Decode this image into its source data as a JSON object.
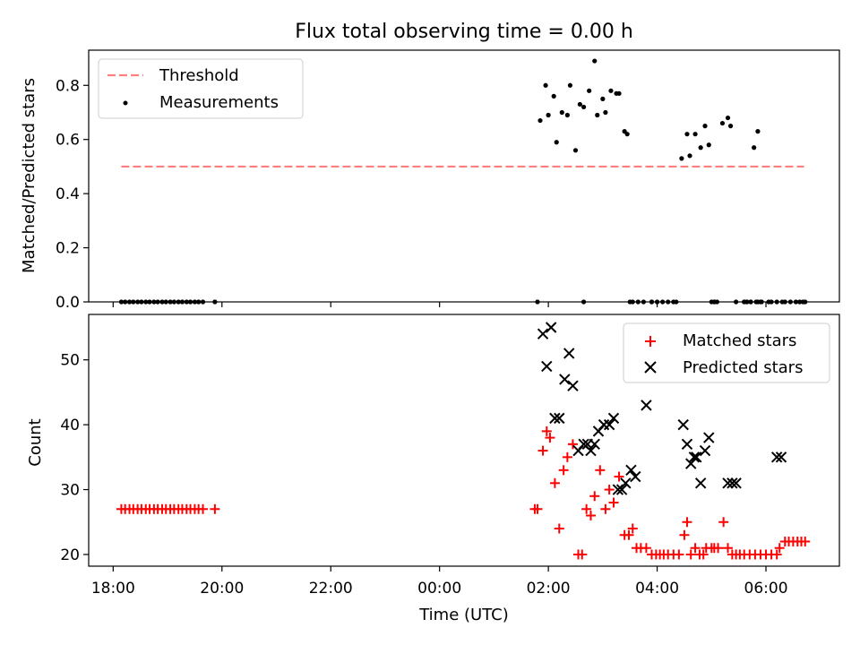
{
  "chart_data": [
    {
      "type": "scatter",
      "title": "Flux total observing time = 0.00 h",
      "xlabel": "",
      "ylabel": "Matched/Predicted stars",
      "ylim": [
        0,
        0.93
      ],
      "yticks": [
        0.0,
        0.2,
        0.4,
        0.6,
        0.8
      ],
      "ytick_labels": [
        "0.0",
        "0.2",
        "0.4",
        "0.6",
        "0.8"
      ],
      "xlim_hours": [
        17.55,
        31.35
      ],
      "legend": {
        "placement": "top-left",
        "entries": [
          "Threshold",
          "Measurements"
        ]
      },
      "threshold": {
        "name": "Threshold",
        "value": 0.5,
        "x_start": 18.15,
        "x_end": 30.7,
        "color": "#ff7f7f"
      },
      "measurements": {
        "name": "Measurements",
        "color": "#000000",
        "x": [
          18.15,
          18.22,
          18.3,
          18.37,
          18.45,
          18.52,
          18.6,
          18.67,
          18.75,
          18.82,
          18.9,
          18.97,
          19.05,
          19.12,
          19.2,
          19.27,
          19.35,
          19.42,
          19.5,
          19.57,
          19.65,
          19.87,
          25.8,
          25.85,
          25.95,
          26.0,
          26.1,
          26.15,
          26.25,
          26.35,
          26.4,
          26.5,
          26.58,
          26.65,
          26.75,
          26.85,
          26.9,
          27.0,
          27.05,
          27.15,
          27.25,
          27.3,
          27.4,
          27.45,
          27.55,
          27.65,
          27.75,
          27.9,
          28.45,
          28.55,
          28.6,
          28.7,
          28.8,
          28.88,
          28.95,
          29.05,
          29.2,
          29.3,
          29.35,
          29.45,
          29.6,
          29.65,
          29.72,
          29.78,
          29.85,
          29.92,
          30.05,
          30.1,
          30.2,
          30.3,
          30.35,
          30.45,
          30.55,
          30.62,
          30.68,
          30.72
        ],
        "y": [
          0,
          0,
          0,
          0,
          0,
          0,
          0,
          0,
          0,
          0,
          0,
          0,
          0,
          0,
          0,
          0,
          0,
          0,
          0,
          0,
          0,
          0,
          0,
          0.67,
          0.8,
          0.69,
          0.76,
          0.59,
          0.7,
          0.69,
          0.8,
          0.56,
          0.73,
          0.72,
          0.78,
          0.89,
          0.69,
          0.75,
          0.7,
          0.78,
          0.77,
          0.77,
          0.63,
          0.62,
          0,
          0,
          0,
          0,
          0.53,
          0.62,
          0.54,
          0.62,
          0.57,
          0.65,
          0.58,
          0,
          0.66,
          0.68,
          0.65,
          0,
          0,
          0,
          0,
          0.57,
          0.63,
          0,
          0,
          0,
          0,
          0,
          0,
          0,
          0,
          0,
          0,
          0
        ],
        "zero_extra_x": [
          26.65,
          27.5,
          27.9,
          28.0,
          28.1,
          28.2,
          28.3,
          28.35,
          29.0,
          29.05,
          29.1,
          29.6,
          29.65,
          29.72,
          29.82,
          29.85,
          29.9
        ]
      }
    },
    {
      "type": "scatter",
      "title": "",
      "xlabel": "Time (UTC)",
      "ylabel": "Count",
      "ylim": [
        18.2,
        57.0
      ],
      "yticks": [
        20,
        30,
        40,
        50
      ],
      "ytick_labels": [
        "20",
        "30",
        "40",
        "50"
      ],
      "xlim_hours": [
        17.55,
        31.35
      ],
      "xticks_hours": [
        18,
        20,
        22,
        24,
        26,
        28,
        30
      ],
      "xtick_labels": [
        "18:00",
        "20:00",
        "22:00",
        "00:00",
        "02:00",
        "04:00",
        "06:00"
      ],
      "legend": {
        "placement": "top-right",
        "entries": [
          "Matched stars",
          "Predicted stars"
        ]
      },
      "series": [
        {
          "name": "Matched stars",
          "marker": "plus",
          "color": "#ff0000",
          "x": [
            18.15,
            18.22,
            18.3,
            18.37,
            18.45,
            18.52,
            18.6,
            18.67,
            18.75,
            18.82,
            18.9,
            18.97,
            19.05,
            19.12,
            19.2,
            19.27,
            19.35,
            19.42,
            19.5,
            19.57,
            19.65,
            19.87,
            25.75,
            25.8,
            25.9,
            25.97,
            26.03,
            26.12,
            26.2,
            26.28,
            26.35,
            26.45,
            26.55,
            26.62,
            26.7,
            26.78,
            26.85,
            26.95,
            27.05,
            27.12,
            27.2,
            27.3,
            27.4,
            27.48,
            27.55,
            27.62,
            27.7,
            27.8,
            27.9,
            27.98,
            28.05,
            28.12,
            28.2,
            28.3,
            28.4,
            28.5,
            28.55,
            28.62,
            28.7,
            28.78,
            28.85,
            28.9,
            29.0,
            29.05,
            29.12,
            29.22,
            29.3,
            29.38,
            29.45,
            29.52,
            29.6,
            29.7,
            29.8,
            29.9,
            30.0,
            30.1,
            30.2,
            30.25,
            30.35,
            30.42,
            30.5,
            30.58,
            30.65,
            30.72
          ],
          "y": [
            27,
            27,
            27,
            27,
            27,
            27,
            27,
            27,
            27,
            27,
            27,
            27,
            27,
            27,
            27,
            27,
            27,
            27,
            27,
            27,
            27,
            27,
            27,
            27,
            36,
            39,
            38,
            31,
            24,
            33,
            35,
            37,
            20,
            20,
            27,
            26,
            29,
            33,
            27,
            30,
            28,
            32,
            23,
            23,
            24,
            21,
            21,
            21,
            20,
            20,
            20,
            20,
            20,
            20,
            20,
            23,
            25,
            20,
            21,
            20,
            20,
            21,
            21,
            21,
            21,
            25,
            21,
            20,
            20,
            20,
            20,
            20,
            20,
            20,
            20,
            20,
            20,
            21,
            22,
            22,
            22,
            22,
            22,
            22
          ]
        },
        {
          "name": "Predicted stars",
          "marker": "x",
          "color": "#000000",
          "x": [
            25.9,
            25.97,
            26.05,
            26.12,
            26.2,
            26.3,
            26.38,
            26.45,
            26.55,
            26.65,
            26.72,
            26.78,
            26.85,
            26.92,
            27.02,
            27.12,
            27.2,
            27.28,
            27.35,
            27.42,
            27.52,
            27.6,
            27.8,
            28.48,
            28.55,
            28.62,
            28.68,
            28.72,
            28.8,
            28.88,
            28.95,
            29.3,
            29.38,
            29.45,
            30.2,
            30.28
          ],
          "y": [
            54,
            49,
            55,
            41,
            41,
            47,
            51,
            46,
            36,
            37,
            37,
            36,
            37,
            39,
            40,
            40,
            41,
            30,
            30,
            31,
            33,
            32,
            43,
            40,
            37,
            34,
            35,
            35,
            31,
            36,
            38,
            31,
            31,
            31,
            35,
            35
          ]
        }
      ]
    }
  ]
}
